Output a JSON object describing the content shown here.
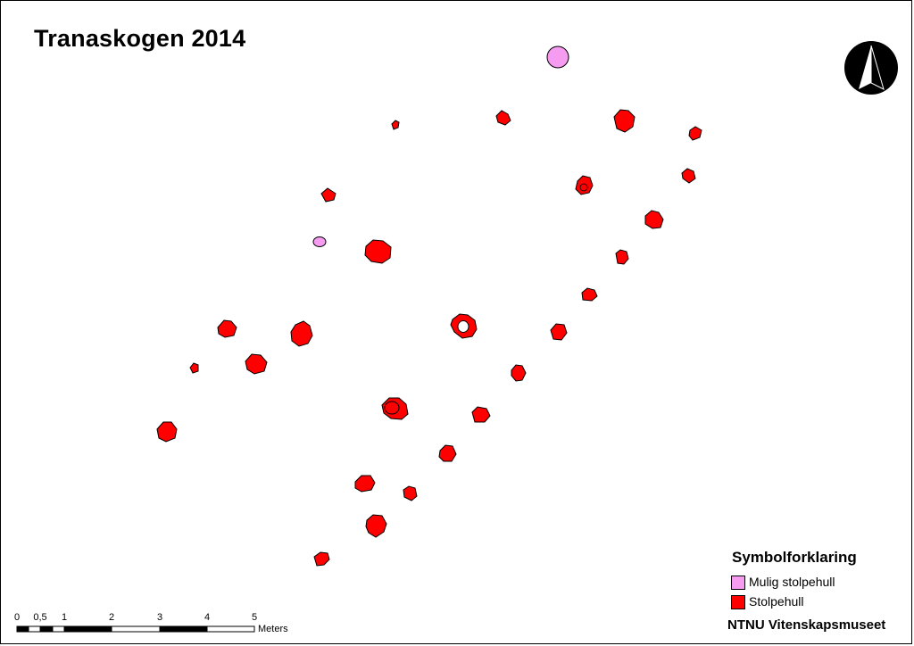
{
  "map": {
    "title": "Tranaskogen 2014"
  },
  "legend": {
    "title": "Symbolforklaring",
    "items": [
      {
        "label": "Mulig stolpehull",
        "color": "#F59BF0"
      },
      {
        "label": "Stolpehull",
        "color": "#FF0000"
      }
    ]
  },
  "credit": "NTNU Vitenskapsmuseet",
  "scale": {
    "ticks": [
      "0",
      "0,5",
      "1",
      "2",
      "3",
      "4",
      "5"
    ],
    "unit": "Meters"
  },
  "north_arrow": {
    "icon": "north-arrow-icon"
  },
  "colors": {
    "stolpehull": "#FF0000",
    "mulig_stolpehull": "#F59BF0",
    "outline": "#000000"
  }
}
